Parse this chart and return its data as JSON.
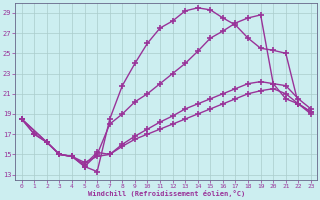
{
  "bg_color": "#cceef0",
  "grid_color": "#aacccc",
  "line_color": "#993399",
  "marker": "+",
  "markersize": 5,
  "linewidth": 1.0,
  "markeredgewidth": 1.2,
  "xlabel": "Windchill (Refroidissement éolien,°C)",
  "ylabel_ticks": [
    13,
    15,
    17,
    19,
    21,
    23,
    25,
    27,
    29
  ],
  "xtick_labels": [
    "0",
    "1",
    "2",
    "3",
    "4",
    "5",
    "6",
    "7",
    "8",
    "9",
    "10",
    "11",
    "12",
    "13",
    "14",
    "15",
    "16",
    "17",
    "18",
    "19",
    "20",
    "21",
    "22",
    "23"
  ],
  "xlim": [
    -0.5,
    23.5
  ],
  "ylim": [
    12.5,
    30.0
  ],
  "curves": [
    {
      "x": [
        0,
        1,
        2,
        3,
        4,
        5,
        6,
        7,
        8,
        9,
        10,
        11,
        12,
        13,
        14,
        15,
        16,
        17,
        18,
        19,
        20,
        21,
        22,
        23
      ],
      "y": [
        18.5,
        17.0,
        16.2,
        15.0,
        14.8,
        13.8,
        13.3,
        18.5,
        21.8,
        24.0,
        26.0,
        27.5,
        28.2,
        29.2,
        29.5,
        29.3,
        28.5,
        27.8,
        26.5,
        25.5,
        25.3,
        25.0,
        20.0,
        19.2
      ]
    },
    {
      "x": [
        0,
        1,
        2,
        3,
        4,
        5,
        6,
        7,
        8,
        9,
        10,
        11,
        12,
        13,
        14,
        15,
        16,
        17,
        18,
        19,
        20,
        21,
        22,
        23
      ],
      "y": [
        18.5,
        17.0,
        16.2,
        15.0,
        14.8,
        13.8,
        15.0,
        18.0,
        19.0,
        20.2,
        21.0,
        22.0,
        23.0,
        24.0,
        25.2,
        26.5,
        27.2,
        28.0,
        28.5,
        28.8,
        22.0,
        20.5,
        20.0,
        19.2
      ]
    },
    {
      "x": [
        0,
        2,
        3,
        4,
        5,
        6,
        7,
        8,
        9,
        10,
        11,
        12,
        13,
        14,
        15,
        16,
        17,
        18,
        19,
        20,
        21,
        22,
        23
      ],
      "y": [
        18.5,
        16.2,
        15.0,
        14.8,
        14.0,
        15.2,
        15.0,
        16.0,
        16.8,
        17.5,
        18.2,
        18.8,
        19.5,
        20.0,
        20.5,
        21.0,
        21.5,
        22.0,
        22.2,
        22.0,
        21.8,
        20.5,
        19.5
      ]
    },
    {
      "x": [
        0,
        2,
        3,
        4,
        5,
        6,
        7,
        8,
        9,
        10,
        11,
        12,
        13,
        14,
        15,
        16,
        17,
        18,
        19,
        20,
        21,
        22,
        23
      ],
      "y": [
        18.5,
        16.2,
        15.0,
        14.8,
        14.2,
        14.8,
        15.0,
        15.8,
        16.5,
        17.0,
        17.5,
        18.0,
        18.5,
        19.0,
        19.5,
        20.0,
        20.5,
        21.0,
        21.3,
        21.5,
        21.0,
        20.0,
        19.0
      ]
    }
  ]
}
